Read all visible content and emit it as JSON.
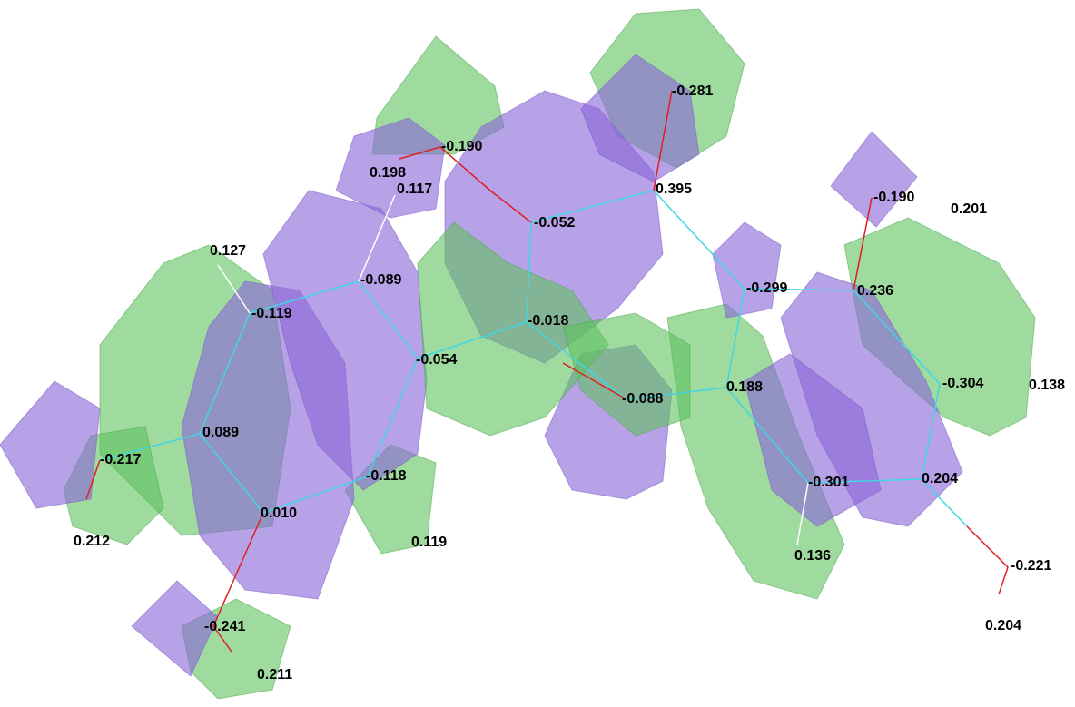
{
  "atom_labels": [
    "-0.281",
    "-0.190",
    "0.198",
    "0.117",
    "0.395",
    "-0.190",
    "0.201",
    "-0.052",
    "0.127",
    "-0.089",
    "-0.299",
    "0.236",
    "-0.119",
    "-0.018",
    "-0.054",
    "-0.304",
    "0.138",
    "0.188",
    "-0.088",
    "0.089",
    "-0.217",
    "-0.118",
    "0.204",
    "-0.301",
    "0.010",
    "0.212",
    "0.119",
    "0.136",
    "-0.221",
    "0.204",
    "-0.241",
    "0.211"
  ]
}
